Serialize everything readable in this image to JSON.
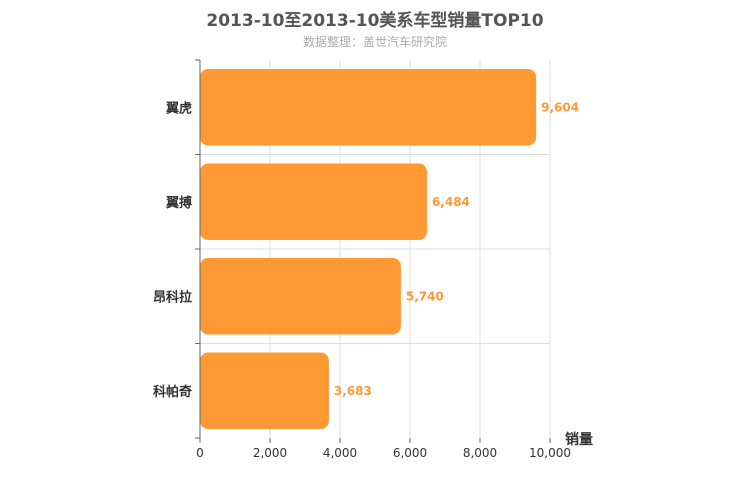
{
  "chart_data": {
    "type": "bar",
    "orientation": "horizontal",
    "title": "2013-10至2013-10美系车型销量TOP10",
    "subtitle": "数据整理：盖世汽车研究院",
    "categories": [
      "翼虎",
      "翼搏",
      "昂科拉",
      "科帕奇"
    ],
    "values": [
      9604,
      6484,
      5740,
      3683
    ],
    "value_labels": [
      "9,604",
      "6,484",
      "5,740",
      "3,683"
    ],
    "xlabel": "销量",
    "ylabel": "",
    "xlim": [
      0,
      10000
    ],
    "x_ticks": [
      0,
      2000,
      4000,
      6000,
      8000,
      10000
    ],
    "x_tick_labels": [
      "0",
      "2,000",
      "4,000",
      "6,000",
      "8,000",
      "10,000"
    ],
    "bar_color": "#ff9933",
    "value_label_color": "#ff9933",
    "grid": true
  }
}
